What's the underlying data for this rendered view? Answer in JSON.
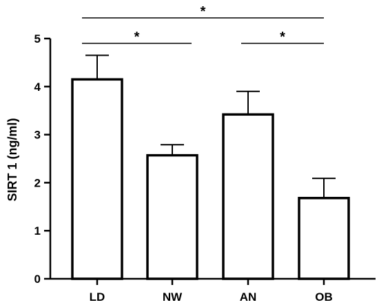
{
  "chart_data": {
    "type": "bar",
    "categories": [
      "LD",
      "NW",
      "AN",
      "OB"
    ],
    "values": [
      4.15,
      2.57,
      3.42,
      1.68
    ],
    "error_upper": [
      0.5,
      0.22,
      0.48,
      0.41
    ],
    "ylabel": "SIRT 1 (ng/ml)",
    "xlabel": "",
    "ylim": [
      0,
      5
    ],
    "yticks": [
      0,
      1,
      2,
      3,
      4,
      5
    ],
    "grid": false,
    "bar_fill": "#ffffff",
    "bar_stroke": "#000000",
    "significance": [
      {
        "from": "LD",
        "to": "NW",
        "label": "*"
      },
      {
        "from": "LD",
        "to": "OB",
        "label": "*"
      },
      {
        "from": "AN",
        "to": "OB",
        "label": "*"
      }
    ]
  }
}
